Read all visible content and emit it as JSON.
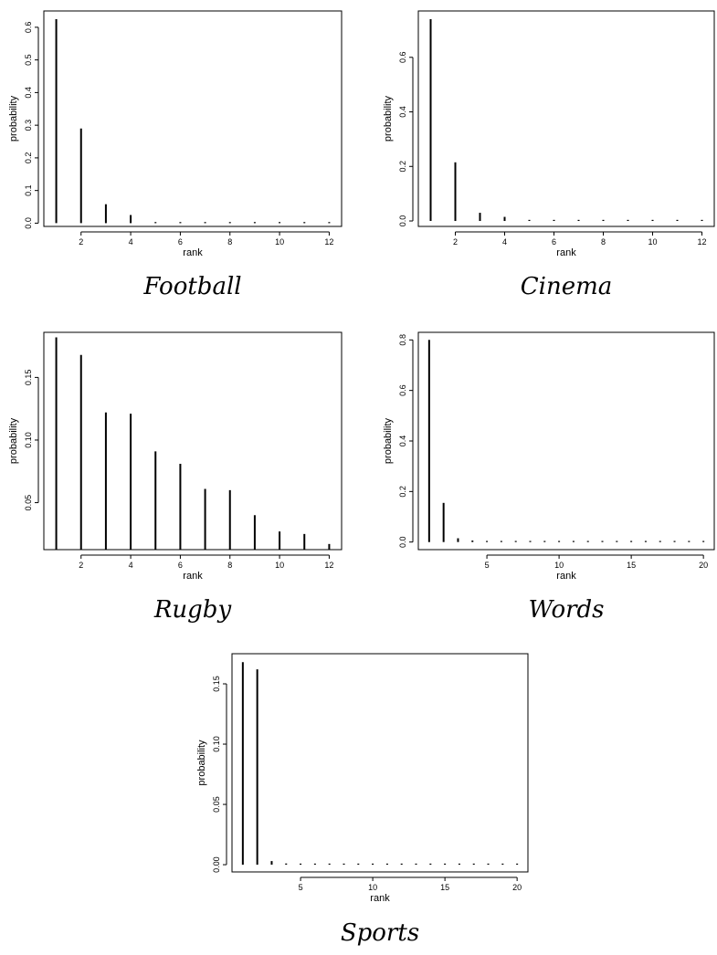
{
  "chart_data": [
    {
      "type": "bar",
      "caption": "Football",
      "xlabel": "rank",
      "ylabel": "probability",
      "x": [
        1,
        2,
        3,
        4,
        5,
        6,
        7,
        8,
        9,
        10,
        11,
        12
      ],
      "values": [
        0.625,
        0.29,
        0.058,
        0.025,
        0.002,
        0.001,
        0.001,
        0.001,
        0.001,
        0.001,
        0.002,
        0.001
      ],
      "xlim": [
        0.5,
        12.5
      ],
      "ylim": [
        -0.01,
        0.65
      ],
      "xticks": [
        2,
        4,
        6,
        8,
        10,
        12
      ],
      "yticks": [
        0.0,
        0.1,
        0.2,
        0.3,
        0.4,
        0.5,
        0.6
      ],
      "ytick_labels": [
        "0.0",
        "0.1",
        "0.2",
        "0.3",
        "0.4",
        "0.5",
        "0.6"
      ]
    },
    {
      "type": "bar",
      "caption": "Cinema",
      "xlabel": "rank",
      "ylabel": "probability",
      "x": [
        1,
        2,
        3,
        4,
        5,
        6,
        7,
        8,
        9,
        10,
        11,
        12
      ],
      "values": [
        0.74,
        0.215,
        0.03,
        0.015,
        0.002,
        0.001,
        0.001,
        0.001,
        0.001,
        0.001,
        0.003,
        0.003
      ],
      "xlim": [
        0.5,
        12.5
      ],
      "ylim": [
        -0.02,
        0.77
      ],
      "xticks": [
        2,
        4,
        6,
        8,
        10,
        12
      ],
      "yticks": [
        0.0,
        0.2,
        0.4,
        0.6
      ],
      "ytick_labels": [
        "0.0",
        "0.2",
        "0.4",
        "0.6"
      ]
    },
    {
      "type": "bar",
      "caption": "Rugby",
      "xlabel": "rank",
      "ylabel": "probability",
      "x": [
        1,
        2,
        3,
        4,
        5,
        6,
        7,
        8,
        9,
        10,
        11,
        12
      ],
      "values": [
        0.182,
        0.168,
        0.122,
        0.121,
        0.091,
        0.081,
        0.061,
        0.06,
        0.04,
        0.027,
        0.025,
        0.017
      ],
      "xlim": [
        0.5,
        12.5
      ],
      "ylim": [
        0.0125,
        0.186
      ],
      "xticks": [
        2,
        4,
        6,
        8,
        10,
        12
      ],
      "yticks": [
        0.05,
        0.1,
        0.15
      ],
      "ytick_labels": [
        "0.05",
        "0.10",
        "0.15"
      ]
    },
    {
      "type": "bar",
      "caption": "Words",
      "xlabel": "rank",
      "ylabel": "probability",
      "x": [
        1,
        2,
        3,
        4,
        5,
        6,
        7,
        8,
        9,
        10,
        11,
        12,
        13,
        14,
        15,
        16,
        17,
        18,
        19,
        20
      ],
      "values": [
        0.8,
        0.155,
        0.015,
        0.006,
        0.002,
        0.001,
        0.001,
        0.001,
        0.001,
        0.001,
        0.001,
        0.001,
        0.001,
        0.001,
        0.001,
        0.001,
        0.001,
        0.001,
        0.001,
        0.001
      ],
      "xlim": [
        0.25,
        20.75
      ],
      "ylim": [
        -0.03,
        0.83
      ],
      "xticks": [
        5,
        10,
        15,
        20
      ],
      "yticks": [
        0.0,
        0.2,
        0.4,
        0.6,
        0.8
      ],
      "ytick_labels": [
        "0.0",
        "0.2",
        "0.4",
        "0.6",
        "0.8"
      ]
    },
    {
      "type": "bar",
      "caption": "Sports",
      "xlabel": "rank",
      "ylabel": "probability",
      "x": [
        1,
        2,
        3,
        4,
        5,
        6,
        7,
        8,
        9,
        10,
        11,
        12,
        13,
        14,
        15,
        16,
        17,
        18,
        19,
        20
      ],
      "values": [
        0.168,
        0.162,
        0.003,
        0.001,
        0.0005,
        0.0005,
        0.0005,
        0.0005,
        0.0005,
        0.0005,
        0.0005,
        0.0005,
        0.0005,
        0.0005,
        0.0005,
        0.0005,
        0.0005,
        0.0005,
        0.0005,
        0.0005
      ],
      "xlim": [
        0.25,
        20.75
      ],
      "ylim": [
        -0.006,
        0.175
      ],
      "xticks": [
        5,
        10,
        15,
        20
      ],
      "yticks": [
        0.0,
        0.05,
        0.1,
        0.15
      ],
      "ytick_labels": [
        "0.00",
        "0.05",
        "0.10",
        "0.15"
      ]
    }
  ]
}
